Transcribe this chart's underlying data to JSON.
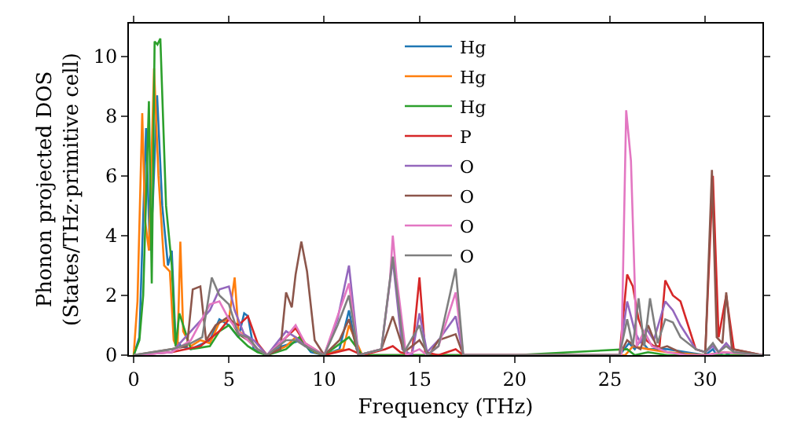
{
  "chart_data": {
    "type": "line",
    "xlabel": "Frequency (THz)",
    "ylabel": "Phonon projected DOS\n(States/THz·primitive cell)",
    "xlim": [
      -0.25,
      33
    ],
    "ylim": [
      0,
      11.1
    ],
    "xticks": [
      0,
      5,
      10,
      15,
      20,
      25,
      30
    ],
    "yticks": [
      0,
      2,
      4,
      6,
      8,
      10
    ],
    "grid": false,
    "legend": "top",
    "marker": "none",
    "line_style": "solid",
    "series": [
      {
        "name": "Hg",
        "color": "#1f77b4",
        "x": [
          0,
          0.3,
          0.65,
          0.85,
          1.0,
          1.23,
          1.5,
          1.8,
          2.0,
          2.2,
          2.5,
          3,
          4,
          4.5,
          5,
          5.5,
          5.8,
          6,
          6.3,
          7,
          7.8,
          8.3,
          8.8,
          9.3,
          10,
          10.8,
          11.3,
          11.7,
          12,
          20,
          25.5,
          26,
          26.3,
          26.6,
          27,
          28,
          29,
          30,
          30.4,
          30.6,
          31,
          31.3,
          33
        ],
        "values": [
          0,
          0.6,
          7.6,
          3.5,
          5,
          8.7,
          5,
          3,
          3.5,
          0.5,
          0.3,
          0.2,
          0.5,
          1.2,
          1.0,
          0.6,
          1.4,
          1.3,
          0.2,
          0,
          0.3,
          0.4,
          0.5,
          0.1,
          0,
          0.2,
          1.5,
          0.2,
          0,
          0,
          0,
          0.4,
          0.2,
          0.5,
          0.2,
          0.2,
          0.1,
          0,
          0.2,
          0,
          0.1,
          0,
          0
        ]
      },
      {
        "name": "Hg",
        "color": "#ff7f0e",
        "x": [
          0,
          0.2,
          0.45,
          0.6,
          0.8,
          1.07,
          1.3,
          1.6,
          1.9,
          2.1,
          2.3,
          2.45,
          2.6,
          3,
          3.5,
          4,
          4.5,
          5,
          5.3,
          5.5,
          6,
          6.5,
          7,
          8,
          8.5,
          9,
          9.5,
          10,
          11,
          11.3,
          12,
          20,
          25.8,
          26.2,
          27,
          28,
          30,
          31,
          33
        ],
        "values": [
          0,
          1.8,
          8.1,
          4.5,
          3.5,
          9.6,
          6,
          3,
          2.8,
          0.5,
          0.2,
          3.8,
          0.8,
          0.3,
          0.5,
          0.4,
          1.1,
          1.2,
          2.6,
          0.8,
          0.6,
          0.2,
          0,
          0.3,
          0.6,
          0.4,
          0.1,
          0,
          0.2,
          1.0,
          0,
          0,
          0,
          0.3,
          0.2,
          0.1,
          0,
          0.1,
          0
        ]
      },
      {
        "name": "Hg",
        "color": "#2ca02c",
        "x": [
          0,
          0.3,
          0.5,
          0.8,
          0.95,
          1.1,
          1.25,
          1.4,
          1.7,
          2.0,
          2.2,
          2.4,
          2.7,
          3,
          4,
          4.5,
          5,
          5.5,
          6,
          6.5,
          7,
          8,
          8.7,
          9.2,
          10,
          11.3,
          12,
          20,
          25.9,
          26.3,
          27,
          28,
          30,
          31,
          33
        ],
        "values": [
          0,
          0.5,
          2,
          8.5,
          2.4,
          10.5,
          10.4,
          10.6,
          5,
          3,
          0.3,
          1.4,
          0.8,
          0.2,
          0.3,
          0.8,
          1.0,
          0.6,
          0.3,
          0.1,
          0,
          0.2,
          0.6,
          0.2,
          0,
          0.6,
          0,
          0,
          0.2,
          0,
          0.1,
          0,
          0,
          0,
          0
        ]
      },
      {
        "name": "P",
        "color": "#d62728",
        "x": [
          0,
          2,
          3.5,
          4.5,
          5,
          5.5,
          6,
          6.5,
          7,
          8,
          8.5,
          9,
          10,
          11.3,
          12,
          13.2,
          13.6,
          14,
          14.6,
          15,
          15.3,
          16,
          16.9,
          17.3,
          20,
          25.5,
          25.9,
          26.2,
          26.5,
          26.9,
          27.3,
          27.6,
          27.9,
          28.3,
          28.7,
          29.5,
          30,
          30.4,
          30.7,
          31.1,
          31.5,
          33
        ],
        "values": [
          0,
          0.1,
          0.3,
          0.8,
          1.2,
          1.0,
          1.3,
          0.4,
          0,
          0.6,
          0.9,
          0.4,
          0,
          0.2,
          0,
          0.2,
          0.3,
          0.1,
          0,
          2.6,
          0.1,
          0,
          0.2,
          0,
          0,
          0,
          2.7,
          2.3,
          1.2,
          0.5,
          0.3,
          0.3,
          2.5,
          2.0,
          1.8,
          0.2,
          0.1,
          6.0,
          0.6,
          2.0,
          0.2,
          0
        ]
      },
      {
        "name": "O",
        "color": "#9467bd",
        "x": [
          0,
          2,
          3,
          4,
          4.5,
          5,
          5.3,
          5.8,
          6.3,
          7,
          8,
          8.5,
          9,
          10,
          10.7,
          11.3,
          11.8,
          13,
          13.6,
          14.1,
          14.6,
          15,
          15.4,
          16,
          16.9,
          17.3,
          20,
          25.5,
          25.9,
          26.3,
          26.6,
          26.9,
          27.3,
          27.9,
          28.3,
          28.7,
          29.5,
          30,
          30.4,
          30.7,
          31.1,
          31.5,
          33
        ],
        "values": [
          0,
          0.1,
          0.8,
          1.5,
          2.2,
          2.3,
          1.5,
          0.7,
          0.5,
          0,
          0.8,
          0.6,
          0.3,
          0,
          1.2,
          3.0,
          0,
          0.2,
          3.2,
          0.2,
          0,
          1.4,
          0.1,
          0.5,
          1.3,
          0,
          0,
          0,
          1.8,
          0.8,
          0.4,
          0.9,
          0.5,
          1.8,
          1.5,
          1.0,
          0.2,
          0.1,
          0.3,
          0.1,
          0.4,
          0.1,
          0
        ]
      },
      {
        "name": "O",
        "color": "#8c564b",
        "x": [
          0,
          2,
          2.8,
          3.1,
          3.5,
          3.8,
          4.3,
          5,
          5.5,
          6,
          6.5,
          7,
          7.7,
          8,
          8.3,
          8.5,
          8.8,
          9.1,
          9.5,
          10,
          10.8,
          11.3,
          11.8,
          13,
          13.6,
          14.2,
          15,
          15.5,
          16,
          16.9,
          17.3,
          20,
          25.5,
          25.9,
          26.3,
          26.6,
          27,
          27.5,
          28,
          29,
          30,
          30.35,
          30.6,
          30.9,
          31.1,
          31.4,
          33
        ],
        "values": [
          0,
          0.2,
          0.3,
          2.2,
          2.3,
          0.5,
          1.0,
          1.3,
          0.7,
          0.5,
          0.2,
          0,
          0.2,
          2.1,
          1.6,
          2.7,
          3.8,
          2.8,
          0.5,
          0,
          0.5,
          1.2,
          0,
          0.2,
          1.3,
          0.1,
          0.5,
          0,
          0.5,
          0.7,
          0,
          0,
          0,
          0.5,
          0.3,
          0.2,
          1.0,
          0.2,
          0.3,
          0,
          0,
          6.2,
          0.6,
          0.4,
          2.1,
          0.2,
          0
        ]
      },
      {
        "name": "O",
        "color": "#e377c2",
        "x": [
          0,
          2,
          3,
          4,
          4.5,
          5,
          5.5,
          6,
          6.5,
          7,
          8,
          8.5,
          9,
          10,
          10.7,
          11.3,
          11.8,
          13,
          13.45,
          13.6,
          13.8,
          14.3,
          15,
          15.4,
          16,
          16.9,
          17.3,
          20,
          25.6,
          25.85,
          26.1,
          26.4,
          26.8,
          27.2,
          27.6,
          28,
          29,
          30,
          31,
          33
        ],
        "values": [
          0,
          0.1,
          0.5,
          1.7,
          1.8,
          1.2,
          0.8,
          0.5,
          0.2,
          0,
          0.6,
          1.0,
          0.4,
          0,
          1.3,
          2.4,
          0,
          0.2,
          2.5,
          4.0,
          2.6,
          0,
          0.2,
          0,
          0.3,
          2.1,
          0,
          0,
          0,
          8.2,
          6.5,
          0.3,
          0.8,
          0.3,
          0.2,
          0.1,
          0,
          0,
          0.1,
          0
        ]
      },
      {
        "name": "O",
        "color": "#7f7f7f",
        "x": [
          0,
          2,
          3,
          3.6,
          4.1,
          4.5,
          5,
          5.5,
          6,
          6.5,
          7,
          8,
          8.5,
          9,
          10,
          10.7,
          11.3,
          11.8,
          13,
          13.6,
          14.2,
          15,
          15.4,
          16,
          16.9,
          17.3,
          20,
          25.5,
          25.9,
          26.2,
          26.5,
          26.8,
          27.1,
          27.5,
          27.9,
          28.3,
          28.7,
          29.5,
          30,
          30.4,
          30.7,
          31.1,
          31.5,
          33
        ],
        "values": [
          0,
          0.2,
          0.4,
          0.6,
          2.6,
          2.0,
          1.7,
          0.7,
          0.6,
          0.2,
          0,
          0.5,
          0.5,
          0.3,
          0,
          1.0,
          2.0,
          0,
          0.2,
          3.3,
          0.1,
          1.0,
          0,
          0.3,
          2.9,
          0,
          0,
          0,
          1.2,
          0.3,
          1.9,
          0.3,
          1.9,
          0.4,
          1.2,
          1.1,
          0.6,
          0.2,
          0.1,
          0.4,
          0.1,
          0.3,
          0.1,
          0
        ]
      }
    ]
  }
}
